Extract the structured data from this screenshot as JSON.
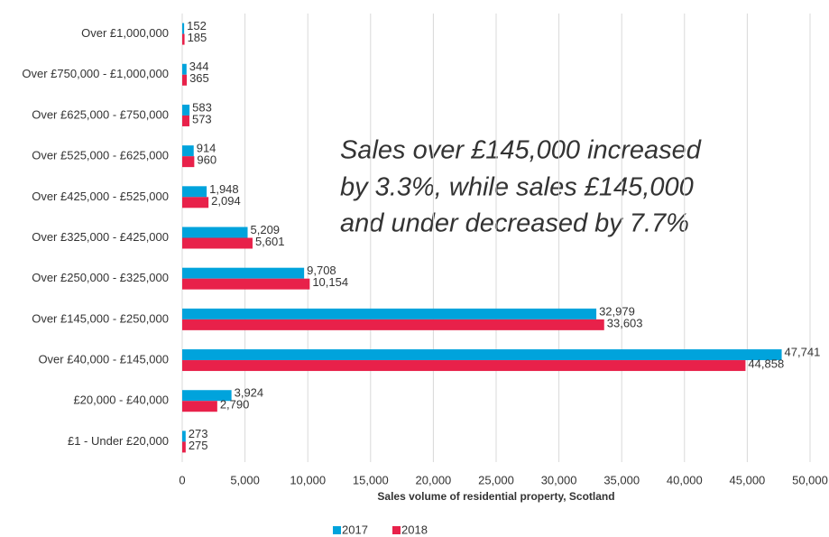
{
  "chart_data": {
    "type": "hbar",
    "categories": [
      "Over £1,000,000",
      "Over £750,000 - £1,000,000",
      "Over £625,000 - £750,000",
      "Over £525,000 - £625,000",
      "Over £425,000 - £525,000",
      "Over £325,000 - £425,000",
      "Over £250,000 - £325,000",
      "Over £145,000 - £250,000",
      "Over £40,000 - £145,000",
      "£20,000 - £40,000",
      "£1 - Under £20,000"
    ],
    "series": [
      {
        "name": "2017",
        "color": "#00a3dc",
        "values": [
          152,
          344,
          583,
          914,
          1948,
          5209,
          9708,
          32979,
          47741,
          3924,
          273
        ],
        "value_labels": [
          "152",
          "344",
          "583",
          "914",
          "1,948",
          "5,209",
          "9,708",
          "32,979",
          "47,741",
          "3,924",
          "273"
        ]
      },
      {
        "name": "2018",
        "color": "#e8214a",
        "values": [
          185,
          365,
          573,
          960,
          2094,
          5601,
          10154,
          33603,
          44858,
          2790,
          275
        ],
        "value_labels": [
          "185",
          "365",
          "573",
          "960",
          "2,094",
          "5,601",
          "10,154",
          "33,603",
          "44,858",
          "2,790",
          "275"
        ]
      }
    ],
    "xlim": [
      0,
      50000
    ],
    "xticks": [
      0,
      {
        "value": 5000,
        "label": "5,000"
      },
      {
        "value": 10000,
        "label": "10,000"
      },
      {
        "value": 15000,
        "label": "15,000"
      },
      {
        "value": 20000,
        "label": "20,000"
      },
      {
        "value": 25000,
        "label": "25,000"
      },
      {
        "value": 30000,
        "label": "30,000"
      },
      {
        "value": 35000,
        "label": "35,000"
      },
      {
        "value": 40000,
        "label": "40,000"
      },
      {
        "value": 45000,
        "label": "45,000"
      },
      {
        "value": 50000,
        "label": "50,000"
      }
    ],
    "xlabel": "Sales volume of residential property, Scotland",
    "annotation": [
      "Sales over £145,000 increased",
      "by 3.3%, while sales £145,000",
      "and under decreased by 7.7%"
    ],
    "grid": true,
    "legend": "bottom"
  }
}
